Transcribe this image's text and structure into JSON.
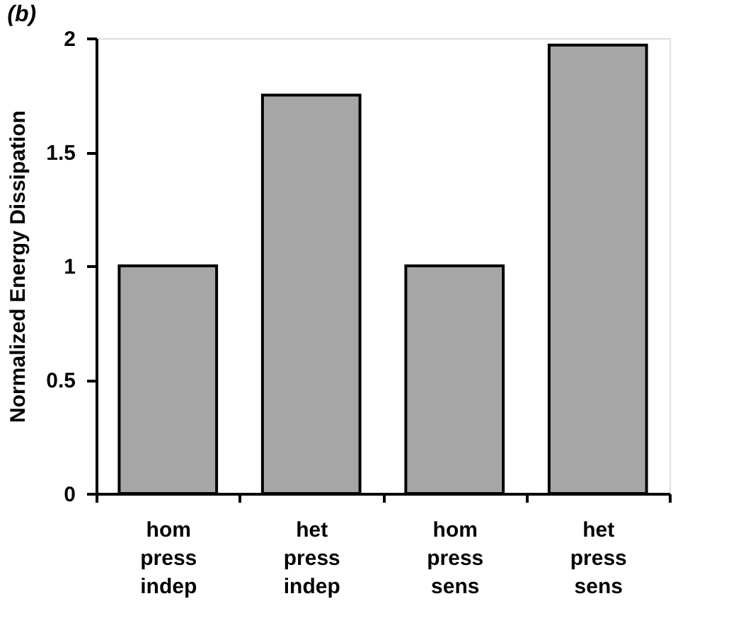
{
  "chart_data": {
    "type": "bar",
    "title": "(b)",
    "ylabel": "Normalized Energy Dissipation",
    "categories": [
      "hom press indep",
      "het press indep",
      "hom press sens",
      "het press sens"
    ],
    "values": [
      1,
      1.75,
      1,
      1.97
    ],
    "color": "#a6a6a6",
    "ylim": [
      0,
      2
    ],
    "yticks": [
      0,
      0.5,
      1,
      1.5,
      2
    ],
    "grid": false
  }
}
